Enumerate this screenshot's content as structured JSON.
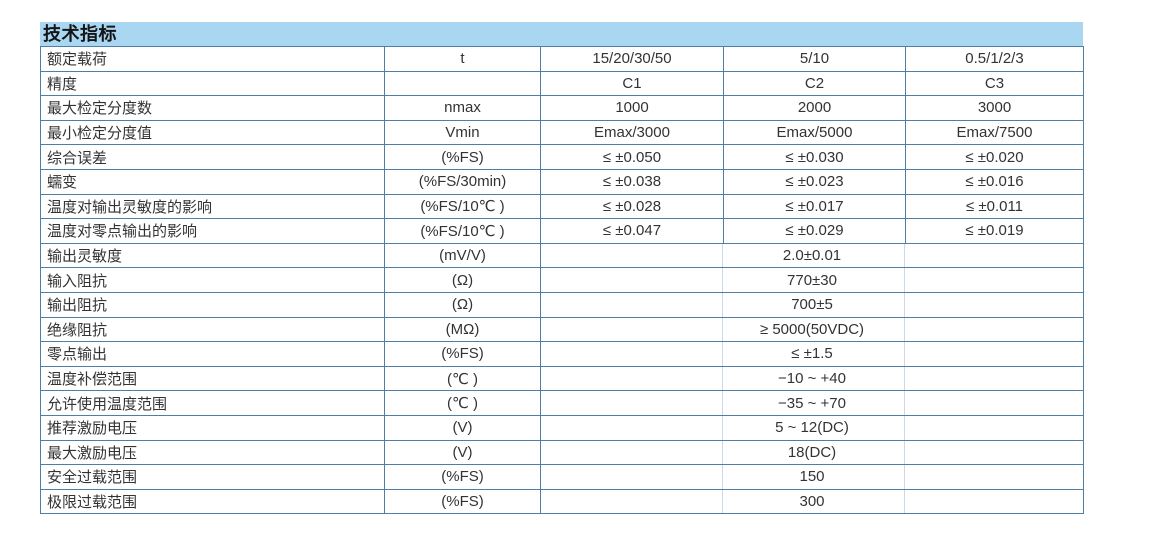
{
  "section": {
    "title": "技术指标"
  },
  "colors": {
    "title_band_bg": "#a9d7f2",
    "table_border": "#4e7ea6",
    "cell_text": "#333333",
    "merged_separator": "#ccdae6"
  },
  "table": {
    "rows": [
      {
        "param": "额定载荷",
        "unit": "t",
        "values": [
          "15/20/30/50",
          "5/10",
          "0.5/1/2/3"
        ]
      },
      {
        "param": "精度",
        "unit": "",
        "values": [
          "C1",
          "C2",
          "C3"
        ]
      },
      {
        "param": "最大检定分度数",
        "unit": "nmax",
        "values": [
          "1000",
          "2000",
          "3000"
        ]
      },
      {
        "param": "最小检定分度值",
        "unit": "Vmin",
        "values": [
          "Emax/3000",
          "Emax/5000",
          "Emax/7500"
        ]
      },
      {
        "param": "综合误差",
        "unit": "(%FS)",
        "values": [
          "≤ ±0.050",
          "≤ ±0.030",
          "≤ ±0.020"
        ]
      },
      {
        "param": "蠕变",
        "unit": "(%FS/30min)",
        "values": [
          "≤ ±0.038",
          "≤ ±0.023",
          "≤ ±0.016"
        ]
      },
      {
        "param": "温度对输出灵敏度的影响",
        "unit": "(%FS/10℃ )",
        "values": [
          "≤ ±0.028",
          "≤ ±0.017",
          "≤ ±0.011"
        ]
      },
      {
        "param": "温度对零点输出的影响",
        "unit": "(%FS/10℃ )",
        "values": [
          "≤ ±0.047",
          "≤ ±0.029",
          "≤ ±0.019"
        ]
      },
      {
        "param": "输出灵敏度",
        "unit": "(mV/V)",
        "merged": "2.0±0.01"
      },
      {
        "param": "输入阻抗",
        "unit": "(Ω)",
        "merged": "770±30"
      },
      {
        "param": "输出阻抗",
        "unit": "(Ω)",
        "merged": "700±5"
      },
      {
        "param": "绝缘阻抗",
        "unit": "(MΩ)",
        "merged": "≥ 5000(50VDC)"
      },
      {
        "param": "零点输出",
        "unit": "(%FS)",
        "merged": "≤ ±1.5"
      },
      {
        "param": "温度补偿范围",
        "unit": "(℃ )",
        "merged": "−10 ~ +40"
      },
      {
        "param": "允许使用温度范围",
        "unit": "(℃ )",
        "merged": "−35 ~ +70"
      },
      {
        "param": "推荐激励电压",
        "unit": "(V)",
        "merged": "5 ~ 12(DC)"
      },
      {
        "param": "最大激励电压",
        "unit": "(V)",
        "merged": "18(DC)"
      },
      {
        "param": "安全过载范围",
        "unit": "(%FS)",
        "merged": "150"
      },
      {
        "param": "极限过载范围",
        "unit": "(%FS)",
        "merged": "300"
      }
    ]
  }
}
